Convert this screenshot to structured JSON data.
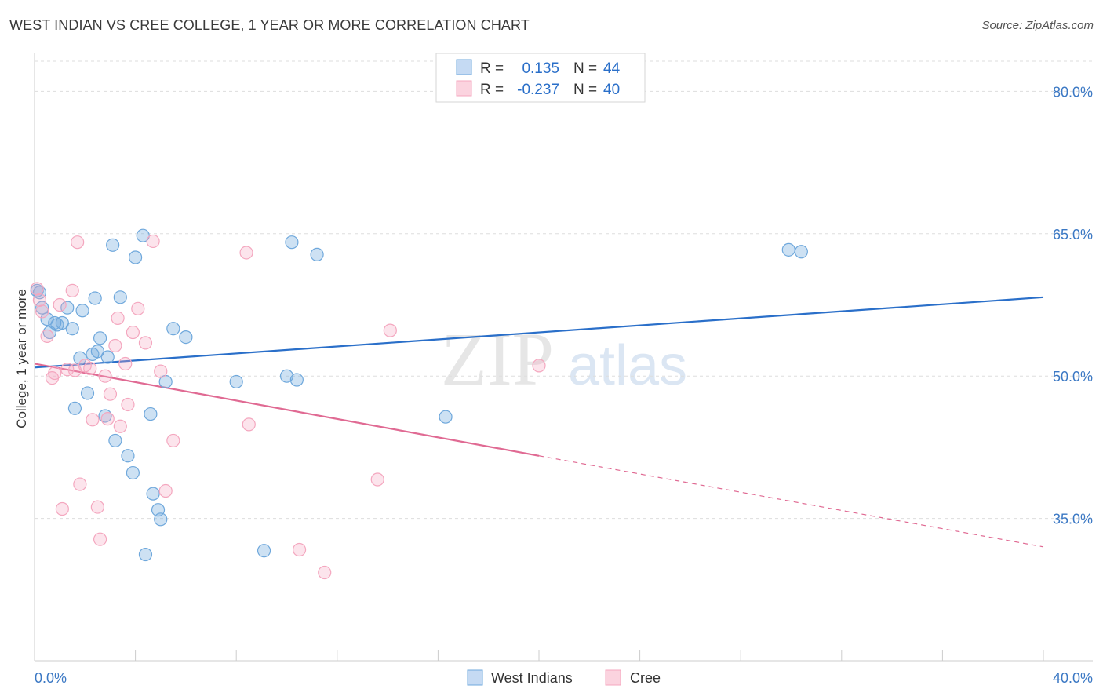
{
  "title": "WEST INDIAN VS CREE COLLEGE, 1 YEAR OR MORE CORRELATION CHART",
  "source": "Source: ZipAtlas.com",
  "watermark": {
    "zip": "ZIP",
    "atlas": "atlas"
  },
  "legend_box": {
    "rows": [
      {
        "r_label": "R =",
        "r_value": "0.135",
        "n_label": "N =",
        "n_value": "44",
        "color": "#6fa8dc"
      },
      {
        "r_label": "R =",
        "r_value": "-0.237",
        "n_label": "N =",
        "n_value": "40",
        "color": "#f4a7bf"
      }
    ]
  },
  "chart_data": {
    "type": "scatter",
    "title": "WEST INDIAN VS CREE COLLEGE, 1 YEAR OR MORE CORRELATION CHART",
    "xlabel": "",
    "ylabel": "College, 1 year or more",
    "xlim": [
      0,
      40
    ],
    "ylim": [
      20,
      84
    ],
    "x_tick_labels": [
      "0.0%",
      "40.0%"
    ],
    "y_ticks": [
      35,
      50,
      65,
      80
    ],
    "y_tick_labels": [
      "35.0%",
      "50.0%",
      "65.0%",
      "80.0%"
    ],
    "grid": true,
    "legend": [
      "West Indians",
      "Cree"
    ],
    "series": [
      {
        "name": "West Indians",
        "color": "#6fa8dc",
        "line_color": "#2a6fc9",
        "r": 0.135,
        "n": 44,
        "trend": {
          "x0": 0,
          "y0": 50.9,
          "x1": 40,
          "y1": 58.3
        },
        "points": [
          [
            0.2,
            58.8
          ],
          [
            0.3,
            57.2
          ],
          [
            0.5,
            56.0
          ],
          [
            0.6,
            54.6
          ],
          [
            0.8,
            55.6
          ],
          [
            0.9,
            55.4
          ],
          [
            1.1,
            55.6
          ],
          [
            1.3,
            57.2
          ],
          [
            1.5,
            55.0
          ],
          [
            1.6,
            46.6
          ],
          [
            1.8,
            51.9
          ],
          [
            1.9,
            56.9
          ],
          [
            2.1,
            48.2
          ],
          [
            2.3,
            52.3
          ],
          [
            2.4,
            58.2
          ],
          [
            2.5,
            52.6
          ],
          [
            2.6,
            54.0
          ],
          [
            2.8,
            45.8
          ],
          [
            2.9,
            52.0
          ],
          [
            3.1,
            63.8
          ],
          [
            3.2,
            43.2
          ],
          [
            3.4,
            58.3
          ],
          [
            3.7,
            41.6
          ],
          [
            3.9,
            39.8
          ],
          [
            4.0,
            62.5
          ],
          [
            4.3,
            64.8
          ],
          [
            4.4,
            31.2
          ],
          [
            4.6,
            46.0
          ],
          [
            4.7,
            37.6
          ],
          [
            4.9,
            35.9
          ],
          [
            5.0,
            34.9
          ],
          [
            5.2,
            49.4
          ],
          [
            5.5,
            55.0
          ],
          [
            6.0,
            54.1
          ],
          [
            8.0,
            49.4
          ],
          [
            9.1,
            31.6
          ],
          [
            10.0,
            50.0
          ],
          [
            10.2,
            64.1
          ],
          [
            10.4,
            49.6
          ],
          [
            11.2,
            62.8
          ],
          [
            16.3,
            45.7
          ],
          [
            29.9,
            63.3
          ],
          [
            30.4,
            63.1
          ],
          [
            0.1,
            59.0
          ]
        ]
      },
      {
        "name": "Cree",
        "color": "#f4a7bf",
        "line_color": "#e06a93",
        "r": -0.237,
        "n": 40,
        "trend": {
          "x0": 0,
          "y0": 51.3,
          "x1": 20,
          "y1": 41.6,
          "x1_dashed": 40,
          "y1_dashed": 32.0
        },
        "points": [
          [
            0.1,
            59.2
          ],
          [
            0.3,
            56.8
          ],
          [
            0.5,
            54.2
          ],
          [
            0.7,
            49.8
          ],
          [
            0.8,
            50.3
          ],
          [
            1.0,
            57.5
          ],
          [
            1.1,
            36.0
          ],
          [
            1.3,
            50.7
          ],
          [
            1.5,
            59.0
          ],
          [
            1.6,
            50.6
          ],
          [
            1.7,
            64.1
          ],
          [
            1.8,
            38.6
          ],
          [
            2.0,
            51.1
          ],
          [
            2.2,
            50.8
          ],
          [
            2.3,
            45.4
          ],
          [
            2.5,
            36.2
          ],
          [
            2.6,
            32.8
          ],
          [
            2.8,
            50.0
          ],
          [
            2.9,
            45.5
          ],
          [
            3.0,
            48.1
          ],
          [
            3.2,
            53.2
          ],
          [
            3.3,
            56.1
          ],
          [
            3.4,
            44.7
          ],
          [
            3.6,
            51.3
          ],
          [
            3.7,
            47.0
          ],
          [
            3.9,
            54.6
          ],
          [
            4.1,
            57.1
          ],
          [
            4.4,
            53.5
          ],
          [
            4.7,
            64.2
          ],
          [
            5.0,
            50.5
          ],
          [
            5.2,
            37.9
          ],
          [
            5.5,
            43.2
          ],
          [
            8.4,
            63.0
          ],
          [
            8.5,
            44.9
          ],
          [
            10.5,
            31.7
          ],
          [
            11.5,
            29.3
          ],
          [
            13.6,
            39.1
          ],
          [
            14.1,
            54.8
          ],
          [
            20.0,
            51.1
          ],
          [
            0.2,
            58.0
          ]
        ]
      }
    ]
  }
}
